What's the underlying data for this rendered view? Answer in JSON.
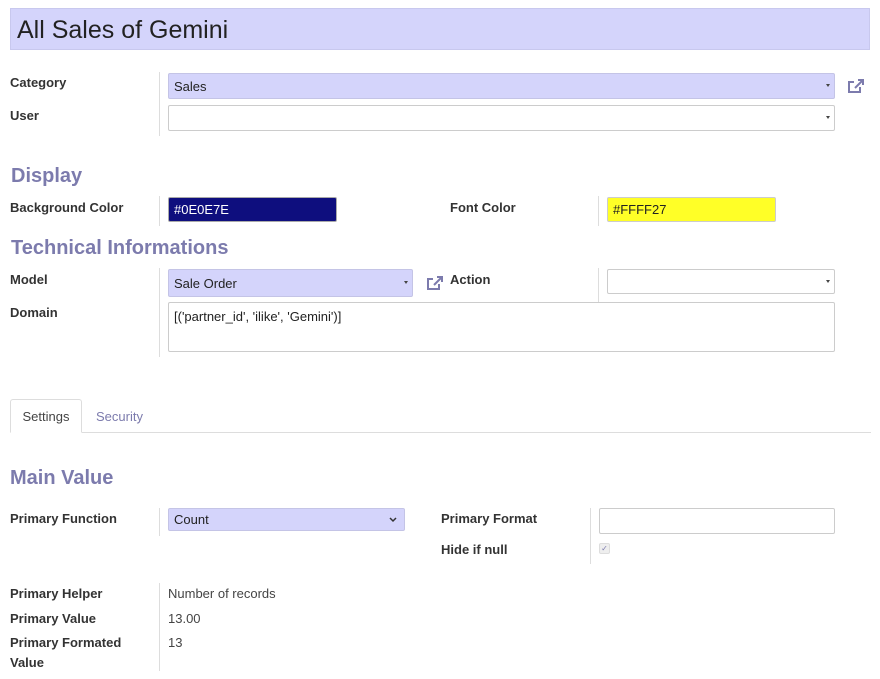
{
  "title": "All Sales of Gemini",
  "fields": {
    "category_label": "Category",
    "category_value": "Sales",
    "user_label": "User",
    "user_value": "",
    "display_heading": "Display",
    "bg_color_label": "Background Color",
    "bg_color_value": "#0E0E7E",
    "font_color_label": "Font Color",
    "font_color_value": "#FFFF27",
    "tech_heading": "Technical Informations",
    "model_label": "Model",
    "model_value": "Sale Order",
    "action_label": "Action",
    "action_value": "",
    "domain_label": "Domain",
    "domain_value": "[('partner_id', 'ilike', 'Gemini')]"
  },
  "tabs": [
    {
      "label": "Settings",
      "active": true
    },
    {
      "label": "Security",
      "active": false
    }
  ],
  "settings": {
    "main_heading": "Main Value",
    "primary_function_label": "Primary Function",
    "primary_function_value": "Count",
    "primary_format_label": "Primary Format",
    "primary_format_value": "",
    "hide_if_null_label": "Hide if null",
    "hide_if_null_checked": true,
    "primary_helper_label": "Primary Helper",
    "primary_helper_value": "Number of records",
    "primary_value_label": "Primary Value",
    "primary_value_value": "13.00",
    "primary_formated_label_1": "Primary Formated",
    "primary_formated_label_2": "Value",
    "primary_formated_value": "13"
  },
  "colors": {
    "accent": "#7c7bad",
    "required_bg": "#d4d4fb",
    "bg_color": "#0E0E7E",
    "font_color": "#FFFF27"
  }
}
